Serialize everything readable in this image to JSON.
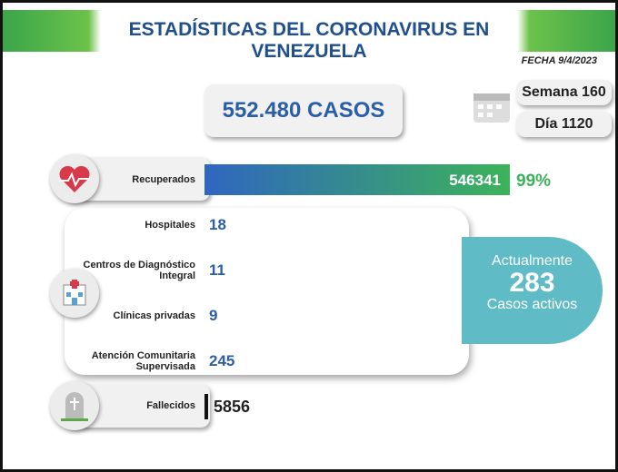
{
  "header": {
    "title": "ESTADÍSTICAS DEL CORONAVIRUS EN VENEZUELA",
    "date": "FECHA 9/4/2023"
  },
  "total_cases": "552.480 CASOS",
  "week": "Semana 160",
  "day": "Día 1120",
  "recovered": {
    "label": "Recuperados",
    "value": "546341",
    "percent": "99%"
  },
  "facilities": [
    {
      "label": "Hospitales",
      "value": "18"
    },
    {
      "label": "Centros de Diagnóstico Integral",
      "value": "11"
    },
    {
      "label": "Clínicas privadas",
      "value": "9"
    },
    {
      "label": "Atención Comunitaria Supervisada",
      "value": "245"
    }
  ],
  "active": {
    "line1": "Actualmente",
    "value": "283",
    "line2": "Casos activos"
  },
  "deaths": {
    "label": "Fallecidos",
    "value": "5856"
  }
}
